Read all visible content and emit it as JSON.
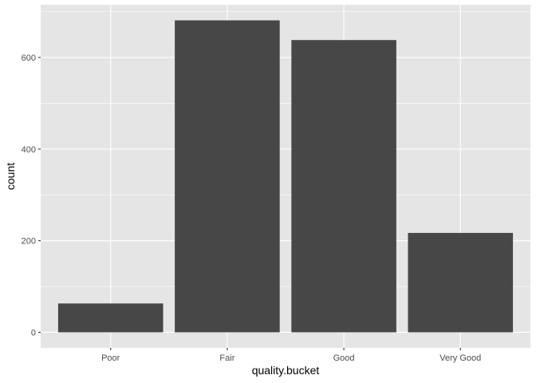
{
  "chart_data": {
    "type": "bar",
    "title": "",
    "xlabel": "quality.bucket",
    "ylabel": "count",
    "categories": [
      "Poor",
      "Fair",
      "Good",
      "Very Good"
    ],
    "values": [
      63,
      681,
      638,
      217
    ],
    "ylim": [
      -34,
      715
    ],
    "yticks": [
      0,
      200,
      400,
      600
    ],
    "ytick_labels": [
      "0",
      "200",
      "400",
      "600"
    ],
    "grid": true,
    "legend": "none",
    "colors": {
      "panel_background": "#e5e5e5",
      "grid_major": "#ffffff",
      "bar_fill": "#474747",
      "tick_label": "#4d4d4d",
      "axis_title": "#000000"
    }
  }
}
